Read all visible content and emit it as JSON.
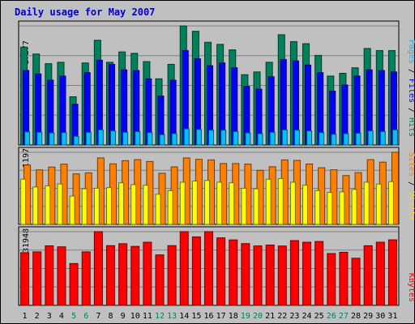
{
  "chart_data": [
    {
      "type": "bar",
      "title": "Daily usage for May 2007",
      "categories": [
        "1",
        "2",
        "3",
        "4",
        "5",
        "6",
        "7",
        "8",
        "9",
        "10",
        "11",
        "12",
        "13",
        "14",
        "15",
        "16",
        "17",
        "18",
        "19",
        "20",
        "21",
        "22",
        "23",
        "24",
        "25",
        "26",
        "27",
        "28",
        "29",
        "30",
        "31"
      ],
      "weekend_days": [
        "5",
        "6",
        "12",
        "13",
        "19",
        "20",
        "26",
        "27"
      ],
      "ymax_label": "17277",
      "ylim": [
        0,
        17277
      ],
      "series": [
        {
          "name": "Hits",
          "color": "#00805c",
          "values": [
            14200,
            13200,
            11800,
            12000,
            7000,
            11900,
            15200,
            12000,
            13500,
            13300,
            12100,
            9600,
            11700,
            17277,
            16500,
            14900,
            14600,
            13800,
            10200,
            10600,
            12000,
            16000,
            15000,
            14700,
            13000,
            10000,
            10400,
            11200,
            14000,
            13700,
            13700
          ]
        },
        {
          "name": "Files",
          "color": "#0000ff",
          "values": [
            10800,
            10300,
            9400,
            10000,
            5900,
            10500,
            12300,
            11700,
            10900,
            10800,
            9600,
            7100,
            9400,
            13700,
            12500,
            11500,
            11900,
            11200,
            8500,
            8100,
            9900,
            12400,
            12200,
            11600,
            10500,
            7800,
            8700,
            10000,
            10900,
            10800,
            10600
          ]
        },
        {
          "name": "Pages",
          "color": "#00c0ff",
          "values": [
            1900,
            1850,
            1750,
            1800,
            1250,
            1850,
            2200,
            2050,
            1850,
            1950,
            1800,
            1500,
            1650,
            2350,
            2250,
            2150,
            2150,
            1950,
            1750,
            1650,
            1850,
            2200,
            2150,
            2050,
            1800,
            1550,
            1650,
            1700,
            2050,
            1950,
            2200
          ]
        }
      ]
    },
    {
      "type": "bar",
      "ymax_label": "1197",
      "ylim": [
        0,
        1197
      ],
      "series": [
        {
          "name": "Visits",
          "color": "#ff8000",
          "values": [
            985,
            905,
            952,
            1000,
            838,
            855,
            1103,
            1005,
            1058,
            1075,
            1044,
            848,
            954,
            1103,
            1080,
            1070,
            1010,
            1010,
            1001,
            897,
            957,
            1070,
            1062,
            1002,
            940,
            906,
            810,
            859,
            1075,
            1033,
            1197
          ]
        },
        {
          "name": "Sites",
          "color": "#ffff00",
          "values": [
            750,
            620,
            640,
            670,
            470,
            590,
            600,
            610,
            690,
            660,
            650,
            500,
            560,
            700,
            720,
            730,
            700,
            690,
            600,
            590,
            750,
            760,
            700,
            650,
            560,
            530,
            540,
            580,
            700,
            670,
            710
          ]
        }
      ]
    },
    {
      "type": "bar",
      "ymax_label": "831948",
      "ylim": [
        0,
        831948
      ],
      "series": [
        {
          "name": "KBytes",
          "color": "#ff0000",
          "values": [
            595000,
            604000,
            672000,
            661000,
            472000,
            604000,
            832000,
            674000,
            696000,
            666000,
            713000,
            570000,
            674000,
            831948,
            773000,
            831948,
            762000,
            739000,
            697000,
            671000,
            681000,
            670000,
            731000,
            713000,
            721000,
            585000,
            599000,
            532000,
            673000,
            713000,
            740000
          ]
        }
      ]
    }
  ]
}
